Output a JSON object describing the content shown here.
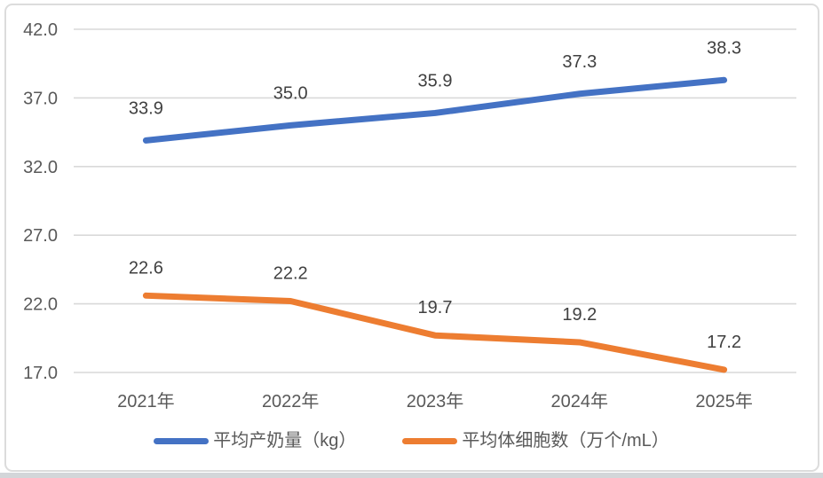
{
  "colors": {
    "series_blue": "#4472C4",
    "series_orange": "#ED7D31",
    "gridline": "#D9D9D9",
    "axis_text": "#595959",
    "data_label_text": "#404040",
    "frame_border": "#DCDCDC",
    "background": "#FFFFFF",
    "bottom_strip": "#D3D6D9"
  },
  "chart_data": {
    "type": "line",
    "title": "",
    "xlabel": "",
    "ylabel": "",
    "categories": [
      "2021年",
      "2022年",
      "2023年",
      "2024年",
      "2025年"
    ],
    "y_ticks": [
      "42.0",
      "37.0",
      "32.0",
      "27.0",
      "22.0",
      "17.0"
    ],
    "ylim": [
      17.0,
      42.0
    ],
    "grid": true,
    "legend_position": "bottom",
    "data_labels": true,
    "series": [
      {
        "name": "平均产奶量（kg）",
        "color": "#4472C4",
        "values": [
          33.9,
          35.0,
          35.9,
          37.3,
          38.3
        ],
        "labels": [
          "33.9",
          "35.0",
          "35.9",
          "37.3",
          "38.3"
        ]
      },
      {
        "name": "平均体细胞数（万个/mL）",
        "color": "#ED7D31",
        "values": [
          22.6,
          22.2,
          19.7,
          19.2,
          17.2
        ],
        "labels": [
          "22.6",
          "22.2",
          "19.7",
          "19.2",
          "17.2"
        ]
      }
    ]
  }
}
